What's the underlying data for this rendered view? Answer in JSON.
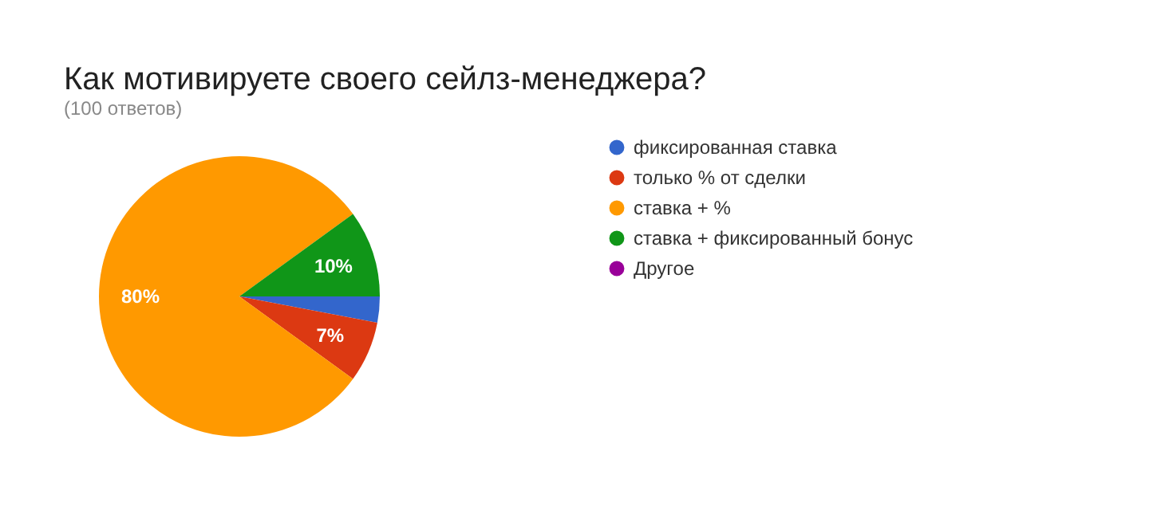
{
  "chart_data": {
    "type": "pie",
    "title": "Как мотивируете своего сейлз-менеджера?",
    "subtitle": "(100 ответов)",
    "categories": [
      "фиксированная ставка",
      "только % от сделки",
      "ставка + %",
      "ставка + фиксированный бонус",
      "Другое"
    ],
    "values": [
      3,
      7,
      80,
      10,
      0
    ],
    "colors": [
      "#3366cc",
      "#dc3912",
      "#ff9900",
      "#109618",
      "#990099"
    ],
    "value_labels": [
      null,
      "7%",
      "80%",
      "10%",
      null
    ],
    "legend": "right"
  }
}
